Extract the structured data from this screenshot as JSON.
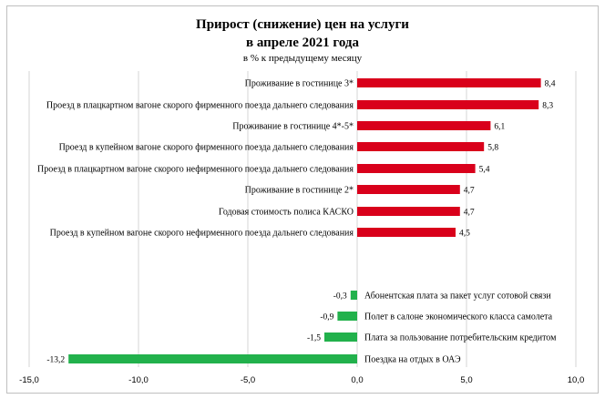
{
  "chart_data": {
    "type": "bar",
    "orientation": "horizontal",
    "title_line1": "Прирост (снижение) цен на услуги",
    "title_line2": "в апреле 2021  года",
    "subtitle": "в % к предыдущему месяцу",
    "categories": [
      "Проживание в гостинице 3*",
      "Проезд в плацкартном вагоне скорого фирменного поезда дальнего следования",
      "Проживание в гостинице 4*-5*",
      "Проезд в купейном вагоне скорого фирменного поезда дальнего следования",
      "Проезд в плацкартном вагоне скорого нефирменного поезда дальнего следования",
      "Проживание в гостинице 2*",
      "Годовая стоимость полиса КАСКО",
      "Проезд в купейном вагоне скорого нефирменного поезда дальнего следования",
      "Абонентская плата за пакет услуг сотовой связи",
      "Полет в салоне экономического класса самолета",
      "Плата за пользование потребительским кредитом",
      "Поездка на отдых в ОАЭ"
    ],
    "values": [
      8.4,
      8.3,
      6.1,
      5.8,
      5.4,
      4.7,
      4.7,
      4.5,
      -0.3,
      -0.9,
      -1.5,
      -13.2
    ],
    "value_labels": [
      "8,4",
      "8,3",
      "6,1",
      "5,8",
      "5,4",
      "4,7",
      "4,7",
      "4,5",
      "-0,3",
      "-0,9",
      "-1,5",
      "-13,2"
    ],
    "xlim": [
      -15,
      10
    ],
    "x_ticks": [
      -15,
      -10,
      -5,
      0,
      5,
      10
    ],
    "x_tick_labels": [
      "-15,0",
      "-10,0",
      "-5,0",
      "0,0",
      "5,0",
      "10,0"
    ],
    "grid": true,
    "legend": false,
    "colors": {
      "positive": "#d9001b",
      "negative": "#22b14c",
      "grid": "#d4d4d4"
    }
  }
}
